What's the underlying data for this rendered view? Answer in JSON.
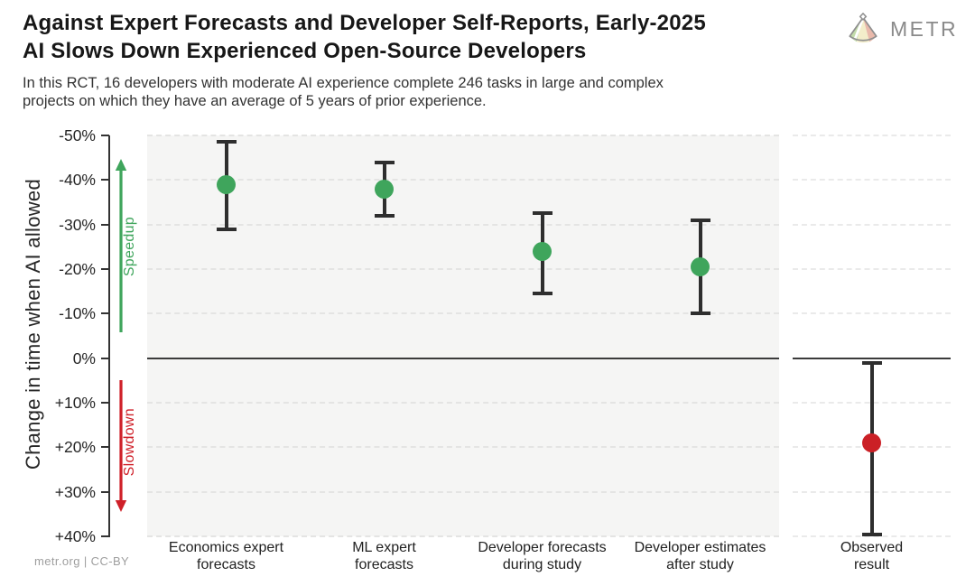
{
  "header": {
    "title": "Against Expert Forecasts and Developer Self-Reports, Early-2025\nAI Slows Down Experienced Open-Source Developers",
    "subtitle": "In this RCT, 16 developers with moderate AI experience complete 246 tasks in large and complex\nprojects on which they have an average of 5 years of prior experience.",
    "logo_text": "METR"
  },
  "footer": {
    "credit": "metr.org  |  CC-BY"
  },
  "colors": {
    "speedup_green": "#3fa55c",
    "slowdown_red": "#cb2026",
    "error_bar": "#2e2e2e",
    "axis": "#333333",
    "panel_grey": "#f5f5f4"
  },
  "chart_data": {
    "type": "scatter",
    "title": "Against Expert Forecasts and Developer Self-Reports, Early-2025 AI Slows Down Experienced Open-Source Developers",
    "ylabel": "Change in time when AI allowed",
    "ylim": [
      -50,
      40
    ],
    "units": "percent change in completion time when AI is allowed (negative = speedup, positive = slowdown)",
    "grid": "horizontal dashed lines every 10%, solid line at 0%",
    "legend_position": "none",
    "y_ticks": [
      {
        "label": "-50%",
        "value": -50
      },
      {
        "label": "-40%",
        "value": -40
      },
      {
        "label": "-30%",
        "value": -30
      },
      {
        "label": "-20%",
        "value": -20
      },
      {
        "label": "-10%",
        "value": -10
      },
      {
        "label": "0%",
        "value": 0
      },
      {
        "label": "+10%",
        "value": 10
      },
      {
        "label": "+20%",
        "value": 20
      },
      {
        "label": "+30%",
        "value": 30
      },
      {
        "label": "+40%",
        "value": 40
      }
    ],
    "annotations": {
      "speedup": {
        "label": "Speedup",
        "color": "#3fa55c",
        "direction": "up",
        "span_values": [
          -6,
          -43.5
        ]
      },
      "slowdown": {
        "label": "Slowdown",
        "color": "#cf2029",
        "direction": "down",
        "span_values": [
          5,
          34
        ]
      }
    },
    "panels": [
      {
        "id": "forecasts",
        "background": "#f5f5f4",
        "grid_color": "#e4e4e3"
      },
      {
        "id": "observed",
        "background": "#ffffff",
        "grid_color": "#eaeaea"
      }
    ],
    "points": [
      {
        "panel": "forecasts",
        "label": "Economics expert\nforecasts",
        "value": -39,
        "ci": [
          -48.5,
          -29
        ],
        "color": "#3fa55c"
      },
      {
        "panel": "forecasts",
        "label": "ML expert\nforecasts",
        "value": -38,
        "ci": [
          -44,
          -32
        ],
        "color": "#3fa55c"
      },
      {
        "panel": "forecasts",
        "label": "Developer forecasts\nduring study",
        "value": -24,
        "ci": [
          -32.5,
          -14.5
        ],
        "color": "#3fa55c"
      },
      {
        "panel": "forecasts",
        "label": "Developer estimates\nafter study",
        "value": -20.5,
        "ci": [
          -31,
          -10
        ],
        "color": "#3fa55c"
      },
      {
        "panel": "observed",
        "label": "Observed\nresult",
        "value": 19,
        "ci": [
          1,
          39.5
        ],
        "color": "#cb2026"
      }
    ]
  }
}
